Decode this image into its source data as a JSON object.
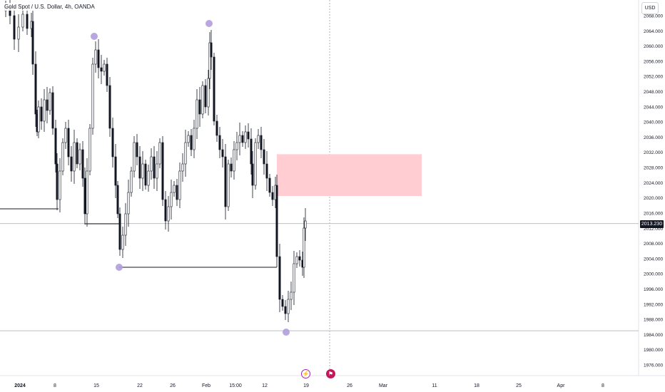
{
  "chart_data": {
    "type": "candlestick",
    "title": "Gold Spot / U.S. Dollar, 4h, OANDA",
    "currency": "USD",
    "current_price": "2013.230",
    "y_axis": {
      "ylim": [
        1974,
        2070
      ],
      "tick_labels": [
        "2068.000",
        "2064.000",
        "2060.000",
        "2056.000",
        "2052.000",
        "2048.000",
        "2044.000",
        "2040.000",
        "2036.000",
        "2032.000",
        "2028.000",
        "2024.000",
        "2020.000",
        "2016.000",
        "2012.000",
        "2008.000",
        "2004.000",
        "2000.000",
        "1996.000",
        "1992.000",
        "1988.000",
        "1984.000",
        "1980.000",
        "1976.000"
      ]
    },
    "x_axis": {
      "tick_labels": [
        "2024",
        "8",
        "15",
        "22",
        "26",
        "Feb",
        "15:00",
        "12",
        "19",
        "26",
        "Mar",
        "11",
        "18",
        "25",
        "Apr",
        "8"
      ]
    },
    "horizontal_levels": [
      {
        "price": 2013.23,
        "role": "current price line"
      },
      {
        "price": 1985.0,
        "role": "support line"
      }
    ],
    "zone": {
      "low": 2020.5,
      "high": 2031.5,
      "color": "#ffcdd2"
    },
    "marker_color": "#b39ddb",
    "events": [
      "lightning-icon",
      "flag-icon"
    ]
  }
}
